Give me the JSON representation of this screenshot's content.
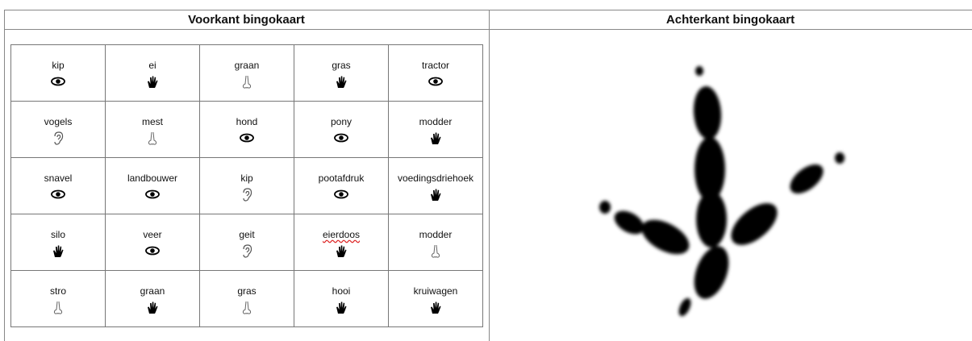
{
  "header": {
    "front_title": "Voorkant bingokaart",
    "back_title": "Achterkant bingokaart"
  },
  "table": {
    "rows": [
      [
        "kip",
        "ei",
        "graan",
        "gras",
        "tractor"
      ],
      [
        "vogels",
        "mest",
        "hond",
        "pony",
        "modder"
      ],
      [
        "snavel",
        "landbouwer",
        "kip",
        "pootafdruk",
        "voedingsdriehoek"
      ],
      [
        "silo",
        "veer",
        "geit",
        "eierdoos",
        "modder"
      ],
      [
        "stro",
        "graan",
        "gras",
        "hooi",
        "kruiwagen"
      ]
    ]
  }
}
